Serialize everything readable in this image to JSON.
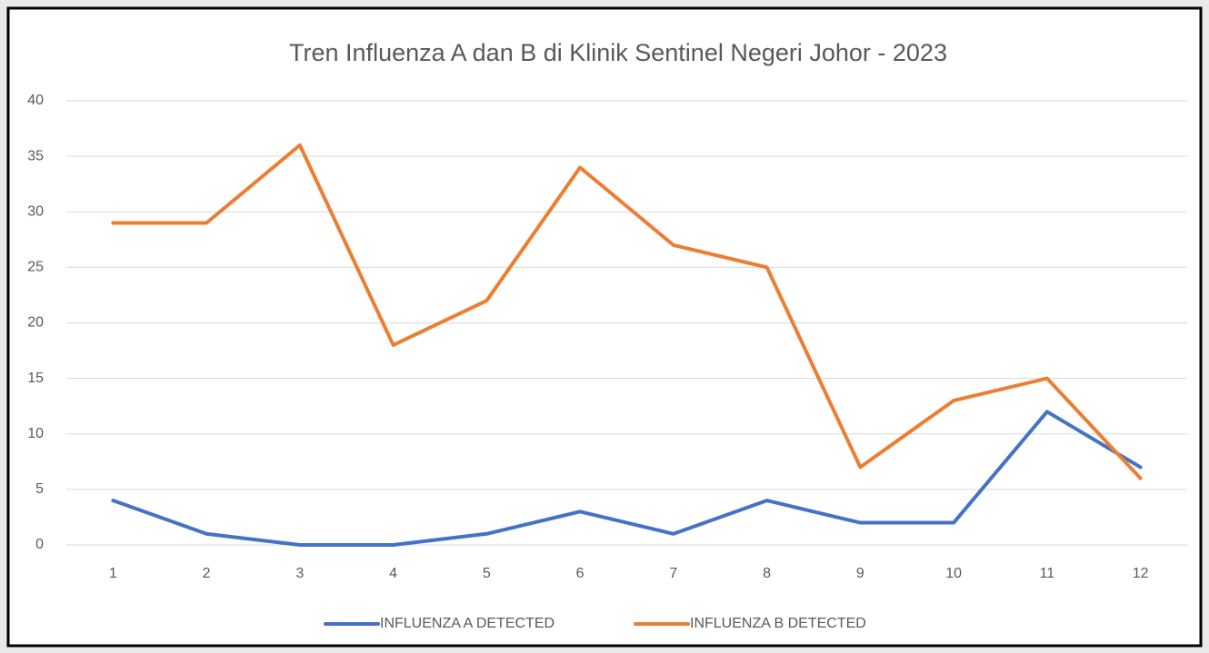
{
  "chart_data": {
    "type": "line",
    "title": "Tren Influenza A dan B di Klinik Sentinel Negeri Johor - 2023",
    "categories": [
      "1",
      "2",
      "3",
      "4",
      "5",
      "6",
      "7",
      "8",
      "9",
      "10",
      "11",
      "12"
    ],
    "series": [
      {
        "name": "INFLUENZA A DETECTED",
        "color": "#4472c4",
        "values": [
          4,
          1,
          0,
          0,
          1,
          3,
          1,
          4,
          2,
          2,
          12,
          7
        ]
      },
      {
        "name": "INFLUENZA B DETECTED",
        "color": "#ed7d31",
        "values": [
          29,
          29,
          36,
          18,
          22,
          34,
          27,
          25,
          7,
          13,
          15,
          6
        ]
      }
    ],
    "ylim": [
      0,
      40
    ],
    "yticks": [
      0,
      5,
      10,
      15,
      20,
      25,
      30,
      35,
      40
    ],
    "grid": true,
    "legend": "bottom"
  }
}
